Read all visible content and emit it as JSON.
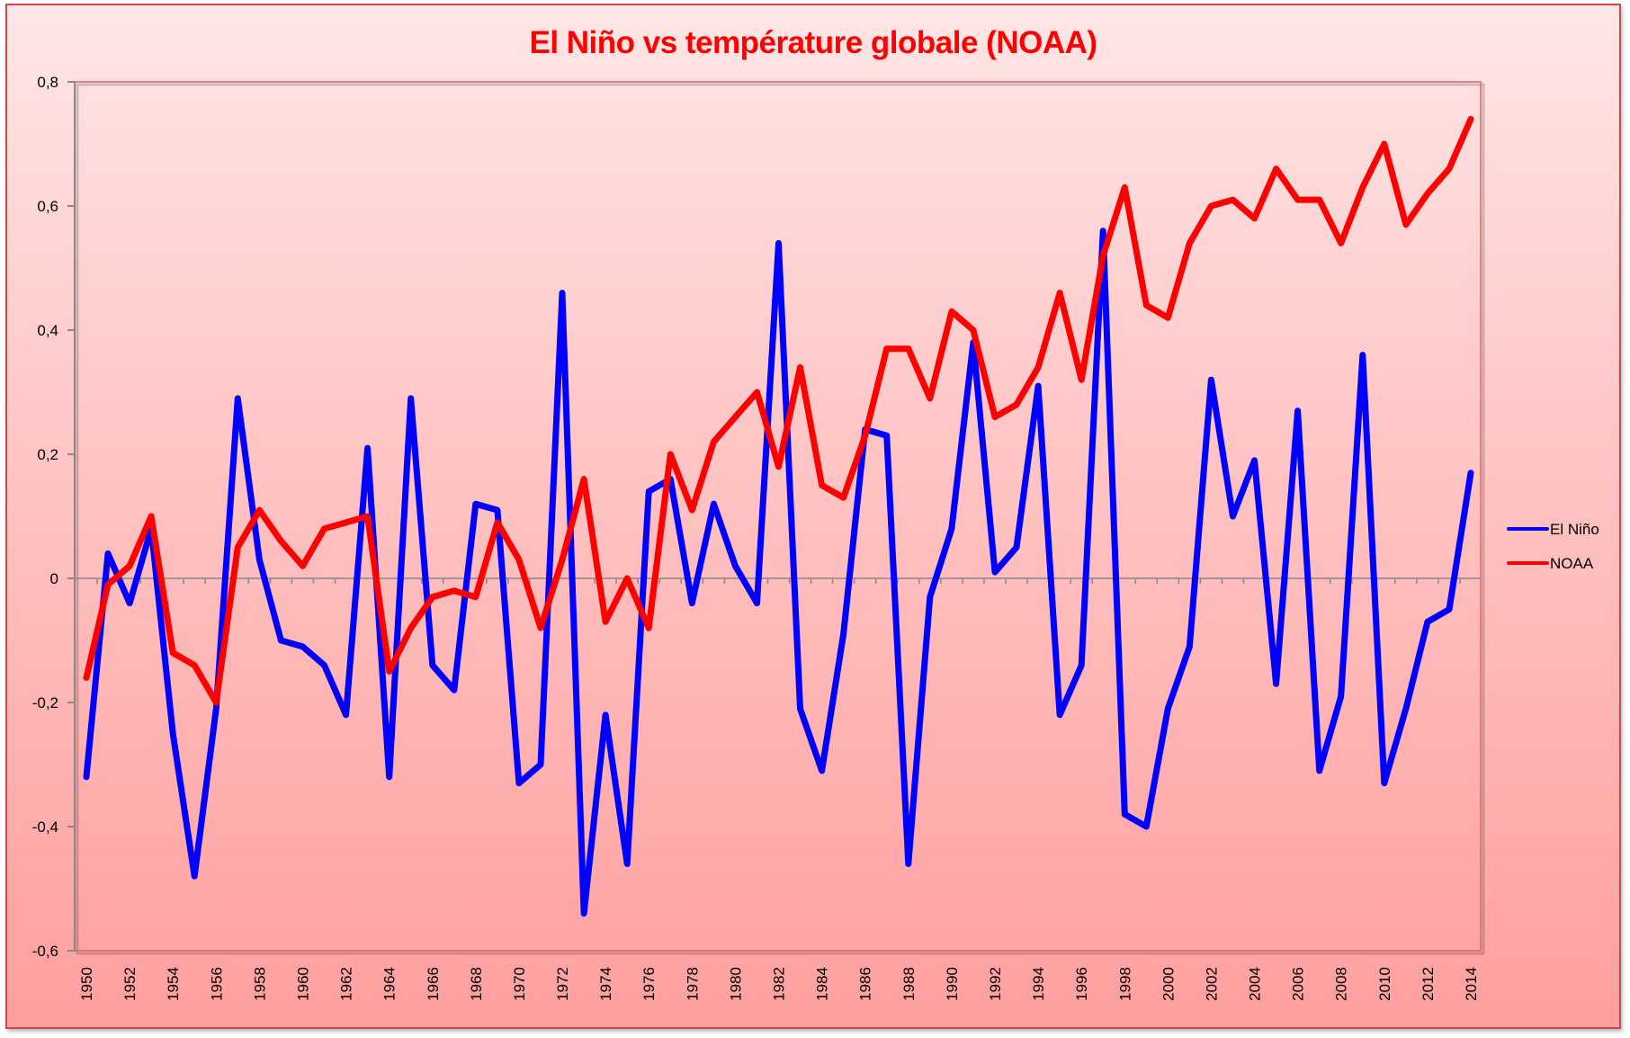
{
  "chart_data": {
    "type": "line",
    "title": "El Niño vs température globale (NOAA)",
    "xlabel": "",
    "ylabel": "",
    "ylim": [
      -0.6,
      0.8
    ],
    "yticks": [
      0.8,
      0.6,
      0.4,
      0.2,
      0,
      -0.2,
      -0.4,
      -0.6
    ],
    "ytick_labels": [
      "0,8",
      "0,6",
      "0,4",
      "0,2",
      "0",
      "-0,2",
      "-0,4",
      "-0,6"
    ],
    "x": [
      1950,
      1951,
      1952,
      1953,
      1954,
      1955,
      1956,
      1957,
      1958,
      1959,
      1960,
      1961,
      1962,
      1963,
      1964,
      1965,
      1966,
      1967,
      1968,
      1969,
      1970,
      1971,
      1972,
      1973,
      1974,
      1975,
      1976,
      1977,
      1978,
      1979,
      1980,
      1981,
      1982,
      1983,
      1984,
      1985,
      1986,
      1987,
      1988,
      1989,
      1990,
      1991,
      1992,
      1993,
      1994,
      1995,
      1996,
      1997,
      1998,
      1999,
      2000,
      2001,
      2002,
      2003,
      2004,
      2005,
      2006,
      2007,
      2008,
      2009,
      2010,
      2011,
      2012,
      2013,
      2014
    ],
    "xtick_labels": [
      "1950",
      "1952",
      "1954",
      "1956",
      "1958",
      "1960",
      "1962",
      "1964",
      "1966",
      "1968",
      "1970",
      "1972",
      "1974",
      "1976",
      "1978",
      "1980",
      "1982",
      "1984",
      "1986",
      "1988",
      "1990",
      "1992",
      "1994",
      "1996",
      "1998",
      "2000",
      "2002",
      "2004",
      "2006",
      "2008",
      "2010",
      "2012",
      "2014"
    ],
    "grid": false,
    "legend": "right",
    "series": [
      {
        "name": "El Niño",
        "color": "#0000ff",
        "values": [
          -0.32,
          0.04,
          -0.04,
          0.08,
          -0.25,
          -0.48,
          -0.21,
          0.29,
          0.03,
          -0.1,
          -0.11,
          -0.14,
          -0.22,
          0.21,
          -0.32,
          0.29,
          -0.14,
          -0.18,
          0.12,
          0.11,
          -0.33,
          -0.3,
          0.46,
          -0.54,
          -0.22,
          -0.46,
          0.14,
          0.16,
          -0.04,
          0.12,
          0.02,
          -0.04,
          0.54,
          -0.21,
          -0.31,
          -0.09,
          0.24,
          0.23,
          -0.46,
          -0.03,
          0.08,
          0.38,
          0.01,
          0.05,
          0.31,
          -0.22,
          -0.14,
          0.56,
          -0.38,
          -0.4,
          -0.21,
          -0.11,
          0.32,
          0.1,
          0.19,
          -0.17,
          0.27,
          -0.31,
          -0.19,
          0.36,
          -0.33,
          -0.21,
          -0.07,
          -0.05,
          0.17
        ]
      },
      {
        "name": "NOAA",
        "color": "#ff0000",
        "values": [
          -0.16,
          -0.01,
          0.02,
          0.1,
          -0.12,
          -0.14,
          -0.2,
          0.05,
          0.11,
          0.06,
          0.02,
          0.08,
          0.09,
          0.1,
          -0.15,
          -0.08,
          -0.03,
          -0.02,
          -0.03,
          0.09,
          0.03,
          -0.08,
          0.03,
          0.16,
          -0.07,
          0.0,
          -0.08,
          0.2,
          0.11,
          0.22,
          0.26,
          0.3,
          0.18,
          0.34,
          0.15,
          0.13,
          0.23,
          0.37,
          0.37,
          0.29,
          0.43,
          0.4,
          0.26,
          0.28,
          0.34,
          0.46,
          0.32,
          0.52,
          0.63,
          0.44,
          0.42,
          0.54,
          0.6,
          0.61,
          0.58,
          0.66,
          0.61,
          0.61,
          0.54,
          0.63,
          0.7,
          0.57,
          0.62,
          0.66,
          0.74
        ]
      }
    ]
  }
}
